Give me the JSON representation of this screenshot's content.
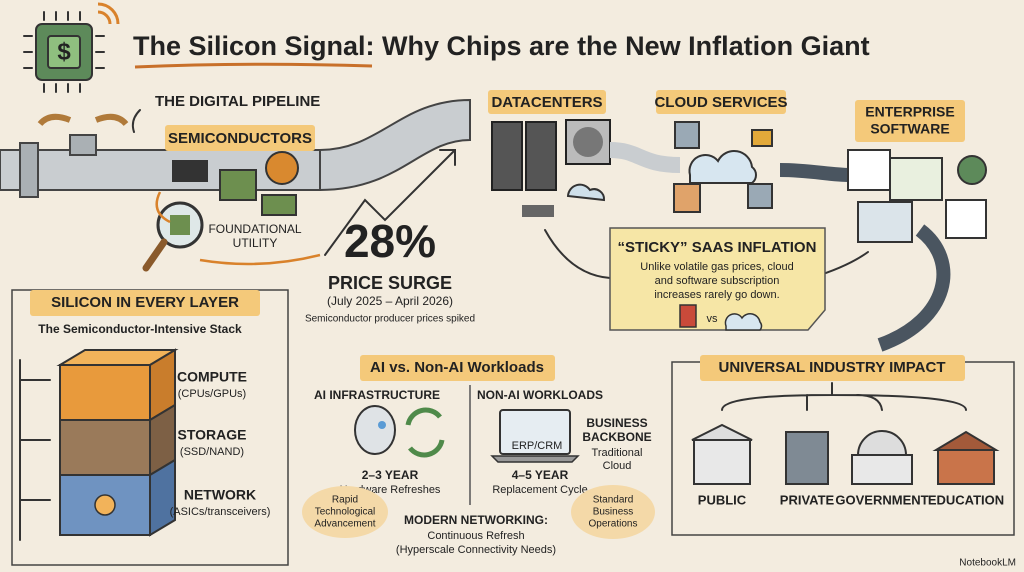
{
  "header": {
    "chip_symbol": "$",
    "title": "The Silicon Signal: Why Chips are the New Inflation Giant"
  },
  "pipeline": {
    "label": "THE DIGITAL PIPELINE",
    "semiconductors": "SEMICONDUCTORS",
    "foundational": [
      "FOUNDATIONAL",
      "UTILITY"
    ]
  },
  "surge": {
    "figure": "28%",
    "label": "PRICE SURGE",
    "period": "(July 2025 – April 2026)",
    "note": "Semiconductor producer prices spiked"
  },
  "stages": {
    "datacenters": "DATACENTERS",
    "cloud": "CLOUD SERVICES",
    "enterprise": [
      "ENTERPRISE",
      "SOFTWARE"
    ]
  },
  "sticky": {
    "title": "“STICKY” SAAS INFLATION",
    "body": [
      "Unlike volatile gas prices, cloud",
      "and software subscription",
      "increases rarely go down."
    ],
    "vs": "vs"
  },
  "stack": {
    "title": "SILICON IN EVERY LAYER",
    "subtitle": "The Semiconductor-Intensive Stack",
    "layers": [
      {
        "name": "COMPUTE",
        "detail": "(CPUs/GPUs)"
      },
      {
        "name": "STORAGE",
        "detail": "(SSD/NAND)"
      },
      {
        "name": "NETWORK",
        "detail": "(ASICs/transceivers)"
      }
    ]
  },
  "workloads": {
    "title": "AI vs. Non-AI Workloads",
    "ai": {
      "title": "AI INFRASTRUCTURE",
      "cycle": "2–3 YEAR",
      "detail": "Hardware Refreshes",
      "driver": [
        "Rapid",
        "Technological",
        "Advancement"
      ]
    },
    "non_ai": {
      "title": "NON-AI WORKLOADS",
      "app": "ERP/CRM",
      "backbone": [
        "BUSINESS",
        "BACKBONE"
      ],
      "backbone_detail": [
        "Traditional",
        "Cloud"
      ],
      "cycle": "4–5 YEAR",
      "detail": "Replacement Cycle",
      "driver": [
        "Standard",
        "Business",
        "Operations"
      ]
    },
    "networking": {
      "title": "MODERN NETWORKING:",
      "lines": [
        "Continuous Refresh",
        "(Hyperscale Connectivity Needs)"
      ]
    }
  },
  "impact": {
    "title": "UNIVERSAL INDUSTRY IMPACT",
    "sectors": [
      "PUBLIC",
      "PRIVATE",
      "GOVERNMENT",
      "EDUCATION"
    ]
  },
  "footer": {
    "brand": "NotebookLM"
  }
}
